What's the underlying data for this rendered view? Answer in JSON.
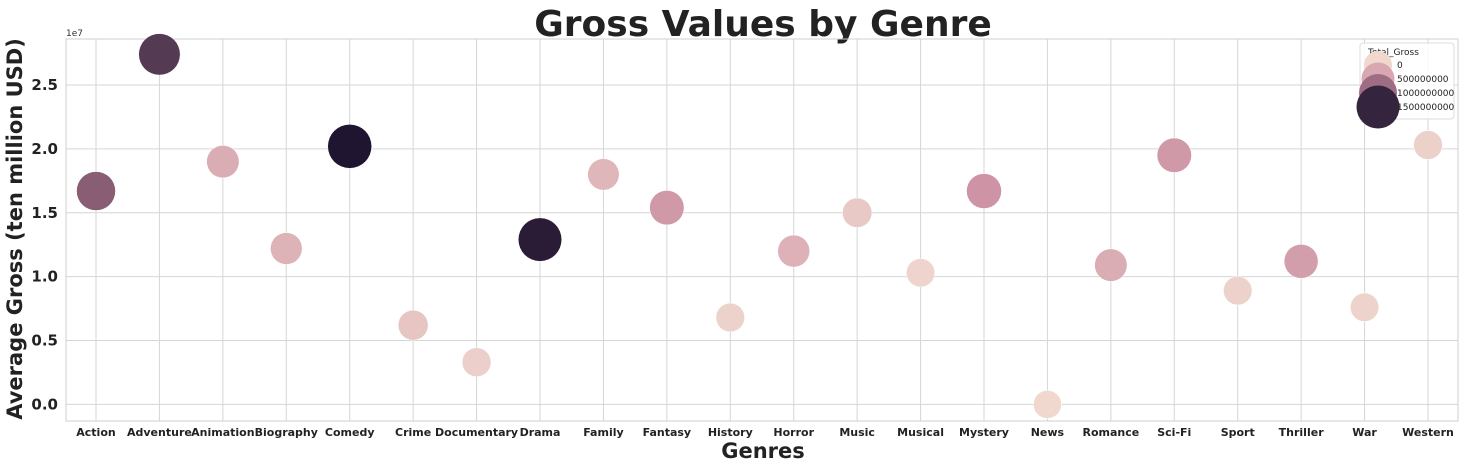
{
  "chart_data": {
    "type": "scatter",
    "title": "Gross Values by Genre",
    "xlabel": "Genres",
    "ylabel": "Average Gross (ten million USD)",
    "y_offset_label": "1e7",
    "ylim": [
      -0.13,
      2.86
    ],
    "yticks": [
      "0.0",
      "0.5",
      "1.0",
      "1.5",
      "2.0",
      "2.5"
    ],
    "categories": [
      "Action",
      "Adventure",
      "Animation",
      "Biography",
      "Comedy",
      "Crime",
      "Documentary",
      "Drama",
      "Family",
      "Fantasy",
      "History",
      "Horror",
      "Music",
      "Musical",
      "Mystery",
      "News",
      "Romance",
      "Sci-Fi",
      "Sport",
      "Thriller",
      "War",
      "Western"
    ],
    "values": [
      1.67,
      2.74,
      1.9,
      1.22,
      2.02,
      0.62,
      0.33,
      1.29,
      1.8,
      1.54,
      0.68,
      1.2,
      1.5,
      1.03,
      1.67,
      0.0,
      1.09,
      1.95,
      0.89,
      1.12,
      0.76,
      2.03
    ],
    "total_gross": [
      1100000000,
      1350000000,
      450000000,
      380000000,
      1600000000,
      200000000,
      90000000,
      1550000000,
      350000000,
      650000000,
      70000000,
      400000000,
      150000000,
      40000000,
      700000000,
      5000000,
      450000000,
      650000000,
      60000000,
      600000000,
      50000000,
      80000000
    ],
    "legend": {
      "title": "Total_Gross",
      "placement": "upper-right",
      "entries": [
        "0",
        "500000000",
        "1000000000",
        "1500000000"
      ],
      "entry_values": [
        0,
        500000000,
        1000000000,
        1500000000
      ]
    },
    "grid": true,
    "colors": {
      "low": "#f0d8cf",
      "mid": "#c98a9f",
      "high": "#1f1530"
    }
  }
}
